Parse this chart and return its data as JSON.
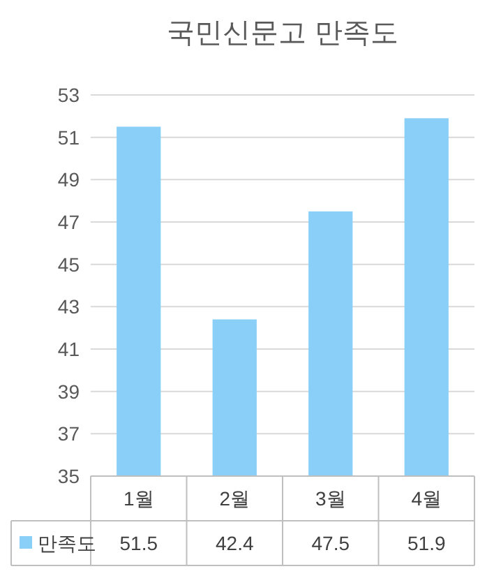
{
  "chart_data": {
    "type": "bar",
    "title": "국민신문고 만족도",
    "categories": [
      "1월",
      "2월",
      "3월",
      "4월"
    ],
    "series": [
      {
        "name": "만족도",
        "color": "#89cff8",
        "values": [
          51.5,
          42.4,
          47.5,
          51.9
        ]
      }
    ],
    "ylim": [
      35,
      53
    ],
    "yticks": [
      35,
      37,
      39,
      41,
      43,
      45,
      47,
      49,
      51,
      53
    ],
    "grid": "y",
    "legend": "bottom",
    "data_labels": true
  }
}
